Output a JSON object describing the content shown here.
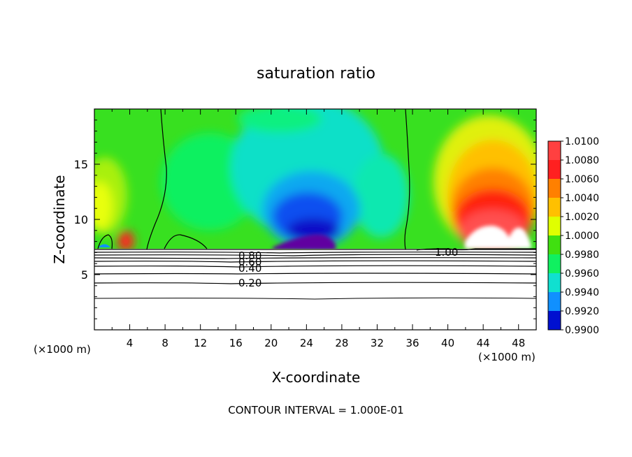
{
  "chart_data": {
    "type": "heatmap",
    "title": "saturation ratio",
    "xlabel": "X-coordinate",
    "ylabel": "Z-coordinate",
    "x_unit_left": "(×1000 m)",
    "x_unit_right": "(×1000 m)",
    "xlim": [
      0,
      50
    ],
    "ylim": [
      0,
      20
    ],
    "x_ticks": [
      "4",
      "8",
      "12",
      "16",
      "20",
      "24",
      "28",
      "32",
      "36",
      "40",
      "44",
      "48"
    ],
    "y_ticks": [
      "5",
      "10",
      "15"
    ],
    "footer": "CONTOUR INTERVAL = 1.000E-01",
    "colorbar": {
      "levels": [
        "1.0100",
        "1.0080",
        "1.0060",
        "1.0040",
        "1.0020",
        "1.0000",
        "0.9980",
        "0.9960",
        "0.9940",
        "0.9920",
        "0.9900"
      ],
      "colors": [
        "#ff4040",
        "#ff2020",
        "#ff8000",
        "#ffc000",
        "#e0ff00",
        "#40e010",
        "#10f060",
        "#10e0d0",
        "#1090ff",
        "#0010d0",
        "#6000a0"
      ]
    },
    "contour_labels": [
      {
        "text": "0.80",
        "x": 17.8,
        "z": 7.0
      },
      {
        "text": "0.60",
        "x": 17.8,
        "z": 6.5
      },
      {
        "text": "0.40",
        "x": 17.8,
        "z": 5.6
      },
      {
        "text": "0.20",
        "x": 17.8,
        "z": 4.2
      },
      {
        "text": "1.00",
        "x": 39.0,
        "z": 7.4
      }
    ]
  }
}
